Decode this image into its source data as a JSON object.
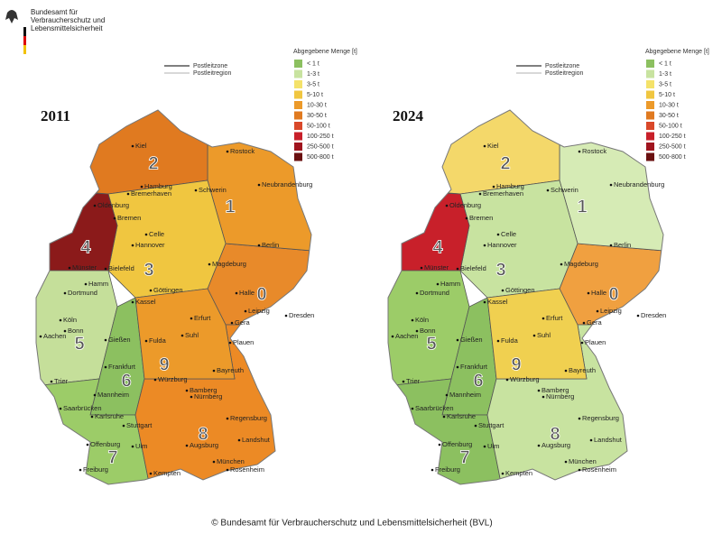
{
  "header": {
    "lines": [
      "Bundesamt für",
      "Verbraucherschutz und",
      "Lebensmittelsicherheit"
    ]
  },
  "legend": {
    "title": "Abgegebene Menge [t]",
    "items": [
      "< 1 t",
      "1-3 t",
      "3-5 t",
      "5-10 t",
      "10-30 t",
      "30-50 t",
      "50-100 t",
      "100-250 t",
      "250-500 t",
      "500-800 t"
    ],
    "lines": [
      "Postleitzone",
      "Postleitregion"
    ]
  },
  "maps": [
    {
      "year": "2011"
    },
    {
      "year": "2024"
    }
  ],
  "zones": [
    "0",
    "1",
    "2",
    "3",
    "4",
    "5",
    "6",
    "7",
    "8",
    "9"
  ],
  "cities": [
    "Kiel",
    "Rostock",
    "Hamburg",
    "Schwerin",
    "Neubrandenburg",
    "Bremerhaven",
    "Oldenburg",
    "Bremen",
    "Celle",
    "Hannover",
    "Berlin",
    "Magdeburg",
    "Bielefeld",
    "Münster",
    "Dortmund",
    "Hamm",
    "Göttingen",
    "Kassel",
    "Halle",
    "Leipzig",
    "Dresden",
    "Köln",
    "Bonn",
    "Aachen",
    "Gießen",
    "Erfurt",
    "Gera",
    "Fulda",
    "Suhl",
    "Plauen",
    "Frankfurt",
    "Trier",
    "Mannheim",
    "Saarbrücken",
    "Würzburg",
    "Bayreuth",
    "Bamberg",
    "Nürnberg",
    "Karlsruhe",
    "Stuttgart",
    "Regensburg",
    "Ulm",
    "Augsburg",
    "Landshut",
    "Offenburg",
    "Freiburg",
    "München",
    "Kempten",
    "Rosenheim"
  ],
  "footer": {
    "copyright": "© Bundesamt für Verbraucherschutz und Lebensmittelsicherheit (BVL)"
  }
}
